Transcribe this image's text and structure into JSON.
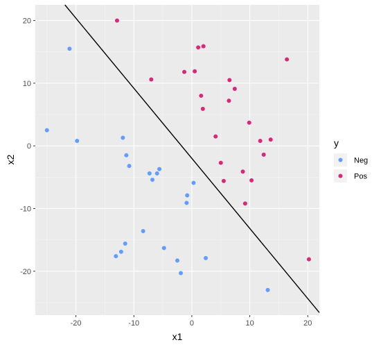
{
  "chart_data": {
    "type": "scatter",
    "xlabel": "x1",
    "ylabel": "x2",
    "xlim": [
      -27.0,
      22.0
    ],
    "ylim": [
      -27.0,
      22.5
    ],
    "x_ticks": [
      -20,
      -10,
      0,
      10,
      20
    ],
    "y_ticks": [
      -20,
      -10,
      0,
      10,
      20
    ],
    "grid": true,
    "legend": {
      "title": "y",
      "placement": "right",
      "entries": [
        {
          "label": "Neg",
          "color": "#619cff"
        },
        {
          "label": "Pos",
          "color": "#d9287a"
        }
      ]
    },
    "series": [
      {
        "name": "Neg",
        "color": "#619cff",
        "points": [
          [
            -21.1,
            15.5
          ],
          [
            -25.0,
            2.5
          ],
          [
            -19.8,
            0.8
          ],
          [
            -11.9,
            1.3
          ],
          [
            -11.3,
            -1.5
          ],
          [
            -10.8,
            -3.2
          ],
          [
            -7.3,
            -4.4
          ],
          [
            -6.8,
            -5.4
          ],
          [
            -6.0,
            -4.4
          ],
          [
            -5.6,
            -3.7
          ],
          [
            -8.4,
            -13.6
          ],
          [
            -11.5,
            -15.6
          ],
          [
            -12.2,
            -16.9
          ],
          [
            -13.1,
            -17.6
          ],
          [
            -4.8,
            -16.3
          ],
          [
            -2.5,
            -18.3
          ],
          [
            -1.9,
            -20.3
          ],
          [
            2.4,
            -17.9
          ],
          [
            -0.8,
            -7.9
          ],
          [
            -0.9,
            -9.1
          ],
          [
            0.3,
            -5.9
          ],
          [
            13.1,
            -23.0
          ]
        ]
      },
      {
        "name": "Pos",
        "color": "#d9287a",
        "points": [
          [
            -12.9,
            20.0
          ],
          [
            -7.0,
            10.6
          ],
          [
            -1.3,
            11.8
          ],
          [
            0.5,
            11.9
          ],
          [
            1.1,
            15.7
          ],
          [
            2.0,
            15.9
          ],
          [
            1.6,
            8.0
          ],
          [
            1.9,
            5.9
          ],
          [
            6.5,
            10.5
          ],
          [
            7.4,
            9.1
          ],
          [
            6.4,
            7.2
          ],
          [
            16.4,
            13.8
          ],
          [
            4.1,
            1.5
          ],
          [
            9.9,
            3.7
          ],
          [
            11.8,
            0.8
          ],
          [
            13.6,
            1.0
          ],
          [
            12.4,
            -1.4
          ],
          [
            5.0,
            -2.7
          ],
          [
            5.5,
            -5.6
          ],
          [
            8.8,
            -4.1
          ],
          [
            10.3,
            -5.5
          ],
          [
            9.2,
            -9.2
          ],
          [
            20.2,
            -18.1
          ]
        ]
      }
    ],
    "reference_line": {
      "type": "line",
      "color": "#000000",
      "points": [
        [
          -21.9,
          22.5
        ],
        [
          22.0,
          -26.6
        ]
      ]
    }
  }
}
